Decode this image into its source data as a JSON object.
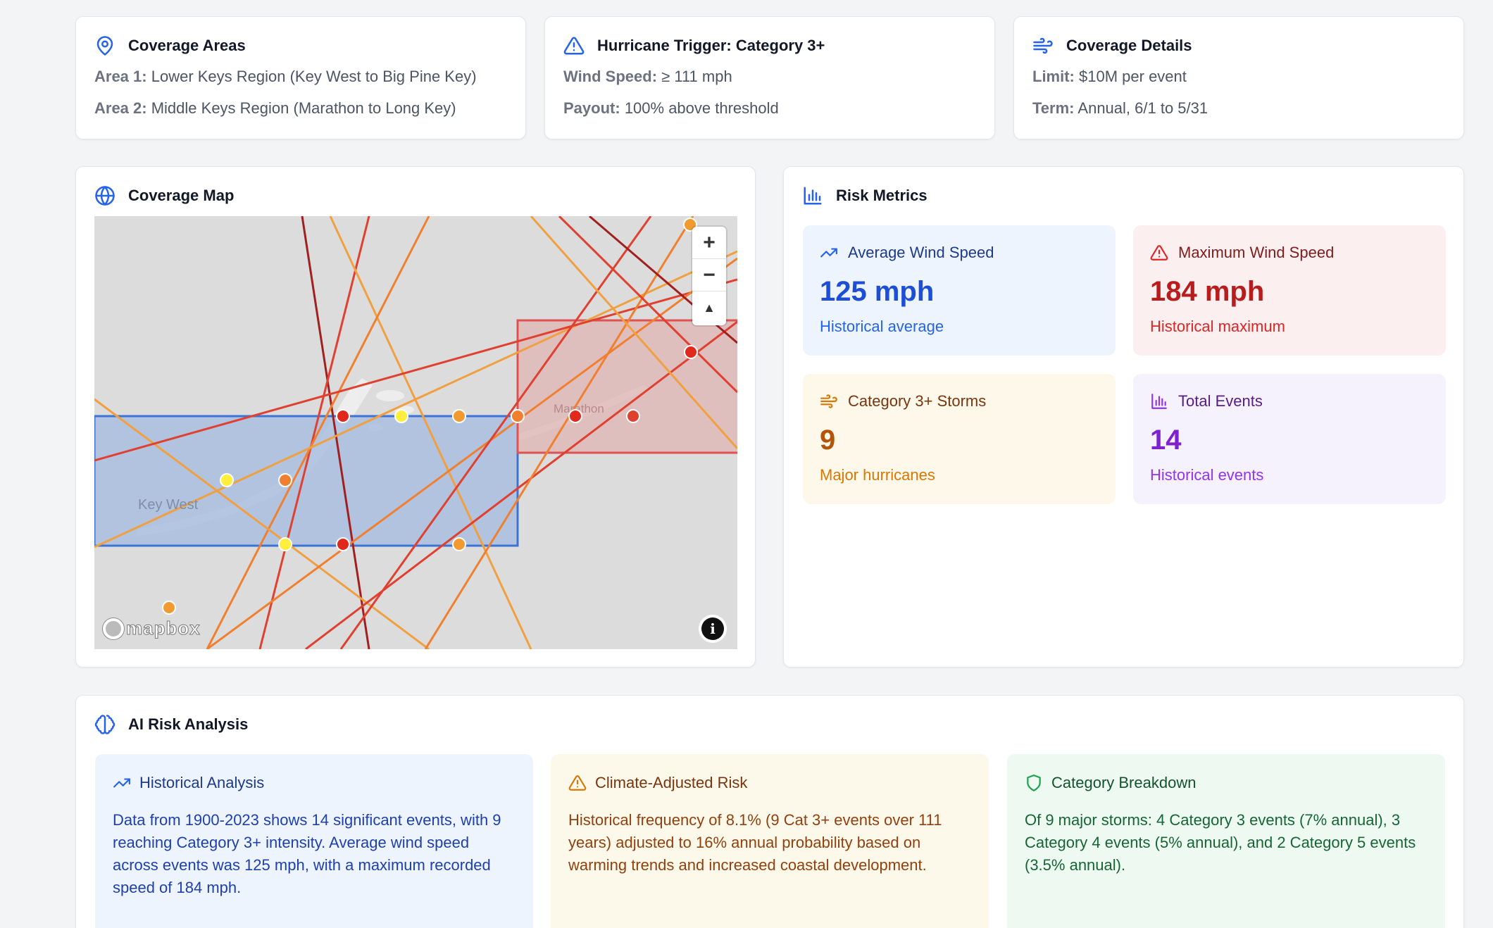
{
  "coverage_areas": {
    "title": "Coverage Areas",
    "area1_label": "Area 1:",
    "area1_value": "Lower Keys Region (Key West to Big Pine Key)",
    "area2_label": "Area 2:",
    "area2_value": "Middle Keys Region (Marathon to Long Key)"
  },
  "trigger": {
    "title": "Hurricane Trigger: Category 3+",
    "wind_label": "Wind Speed:",
    "wind_value": "≥ 111 mph",
    "payout_label": "Payout:",
    "payout_value": "100% above threshold"
  },
  "coverage_details": {
    "title": "Coverage Details",
    "limit_label": "Limit:",
    "limit_value": "$10M per event",
    "term_label": "Term:",
    "term_value": "Annual, 6/1 to 5/31"
  },
  "coverage_map": {
    "title": "Coverage Map",
    "place_labels": [
      "Key West",
      "Marathon"
    ],
    "zoom_in": "+",
    "zoom_out": "−",
    "compass": "▲",
    "attribution_logo": "mapbox",
    "info": "i",
    "colors": {
      "area1_fill": "#a9bedf",
      "area1_stroke": "#3b74d6",
      "area2_fill": "#e0b7b7",
      "area2_stroke": "#e05252",
      "track_orange": "#f0a040",
      "track_red": "#e04030",
      "track_darkred": "#a02020",
      "point_yellow": "#ffee3a",
      "point_orange": "#f09a30",
      "point_red": "#e0281c"
    }
  },
  "risk_metrics": {
    "title": "Risk Metrics",
    "cards": [
      {
        "label": "Average Wind Speed",
        "value": "125 mph",
        "sub": "Historical average",
        "bg": "#eef4fd",
        "accent": "#1d4ed8",
        "head": "#1e3a8a"
      },
      {
        "label": "Maximum Wind Speed",
        "value": "184 mph",
        "sub": "Historical maximum",
        "bg": "#fcefef",
        "accent": "#b91c1c",
        "head": "#7f1d1d"
      },
      {
        "label": "Category 3+ Storms",
        "value": "9",
        "sub": "Major hurricanes",
        "bg": "#fdf8e9",
        "accent": "#b45309",
        "head": "#78350f"
      },
      {
        "label": "Total Events",
        "value": "14",
        "sub": "Historical events",
        "bg": "#f5f1fd",
        "accent": "#7e22ce",
        "head": "#581c87"
      }
    ]
  },
  "ai_analysis": {
    "title": "AI Risk Analysis",
    "panels": [
      {
        "label": "Historical Analysis",
        "body": "Data from 1900-2023 shows 14 significant events, with 9 reaching Category 3+ intensity. Average wind speed across events was 125 mph, with a maximum recorded speed of 184 mph.",
        "bg": "#eef4fd",
        "text": "#1e3a8a"
      },
      {
        "label": "Climate-Adjusted Risk",
        "body": "Historical frequency of 8.1% (9 Cat 3+ events over 111 years) adjusted to 16% annual probability based on warming trends and increased coastal development.",
        "bg": "#fdf9ea",
        "text": "#8a3a0c"
      },
      {
        "label": "Category Breakdown",
        "body": "Of 9 major storms: 4 Category 3 events (7% annual), 3 Category 4 events (5% annual), and 2 Category 5 events (3.5% annual).",
        "bg": "#eefaf1",
        "text": "#14532d"
      }
    ]
  }
}
